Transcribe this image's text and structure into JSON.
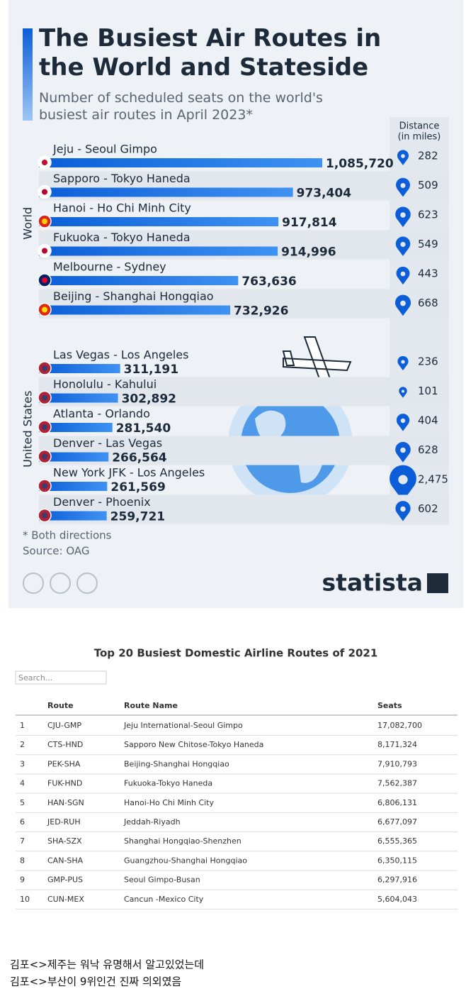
{
  "chart_data": {
    "type": "bar",
    "title": "The Busiest Air Routes in the World and Stateside",
    "subtitle": "Number of scheduled seats on the world's busiest air routes in April 2023*",
    "distance_header": [
      "Distance",
      "(in miles)"
    ],
    "groups": [
      {
        "name": "World",
        "categories": [
          "Jeju - Seoul Gimpo",
          "Sapporo - Tokyo Haneda",
          "Hanoi - Ho Chi Minh City",
          "Fukuoka - Tokyo Haneda",
          "Melbourne - Sydney",
          "Beijing - Shanghai Hongqiao"
        ],
        "values": [
          1085720,
          973404,
          917814,
          914996,
          763636,
          732926
        ],
        "value_labels": [
          "1,085,720",
          "973,404",
          "917,814",
          "914,996",
          "763,636",
          "732,926"
        ],
        "distances": [
          282,
          509,
          623,
          549,
          443,
          668
        ],
        "distance_labels": [
          "282",
          "509",
          "623",
          "549",
          "443",
          "668"
        ]
      },
      {
        "name": "United States",
        "categories": [
          "Las Vegas - Los Angeles",
          "Honolulu - Kahului",
          "Atlanta - Orlando",
          "Denver - Las Vegas",
          "New York JFK - Los Angeles",
          "Denver - Phoenix"
        ],
        "values": [
          311191,
          302892,
          281540,
          266564,
          261569,
          259721
        ],
        "value_labels": [
          "311,191",
          "302,892",
          "281,540",
          "266,564",
          "261,569",
          "259,721"
        ],
        "distances": [
          236,
          101,
          404,
          628,
          2475,
          602
        ],
        "distance_labels": [
          "236",
          "101",
          "404",
          "628",
          "2,475",
          "602"
        ]
      }
    ],
    "color": "#1a6fe0",
    "notes": [
      "* Both directions",
      "Source: OAG"
    ],
    "brand": "statista"
  },
  "table": {
    "title": "Top 20 Busiest Domestic Airline Routes of 2021",
    "search_placeholder": "Search...",
    "headers": [
      "Route",
      "Route Name",
      "Seats"
    ],
    "rows": [
      [
        "1",
        "CJU-GMP",
        "Jeju International-Seoul Gimpo",
        "17,082,700"
      ],
      [
        "2",
        "CTS-HND",
        "Sapporo New Chitose-Tokyo Haneda",
        "8,171,324"
      ],
      [
        "3",
        "PEK-SHA",
        "Beijing-Shanghai Hongqiao",
        "7,910,793"
      ],
      [
        "4",
        "FUK-HND",
        "Fukuoka-Tokyo Haneda",
        "7,562,387"
      ],
      [
        "5",
        "HAN-SGN",
        "Hanoi-Ho Chi Minh City",
        "6,806,131"
      ],
      [
        "6",
        "JED-RUH",
        "Jeddah-Riyadh",
        "6,677,097"
      ],
      [
        "7",
        "SHA-SZX",
        "Shanghai Hongqiao-Shenzhen",
        "6,555,365"
      ],
      [
        "8",
        "CAN-SHA",
        "Guangzhou-Shanghai Hongqiao",
        "6,350,115"
      ],
      [
        "9",
        "GMP-PUS",
        "Seoul Gimpo-Busan",
        "6,297,916"
      ],
      [
        "10",
        "CUN-MEX",
        "Cancun -Mexico City",
        "5,604,043"
      ]
    ]
  },
  "footer_text": [
    "김포<>제주는 워낙 유명해서 알고있었는데",
    "김포<>부산이 9위인건 진짜 의외였음"
  ]
}
